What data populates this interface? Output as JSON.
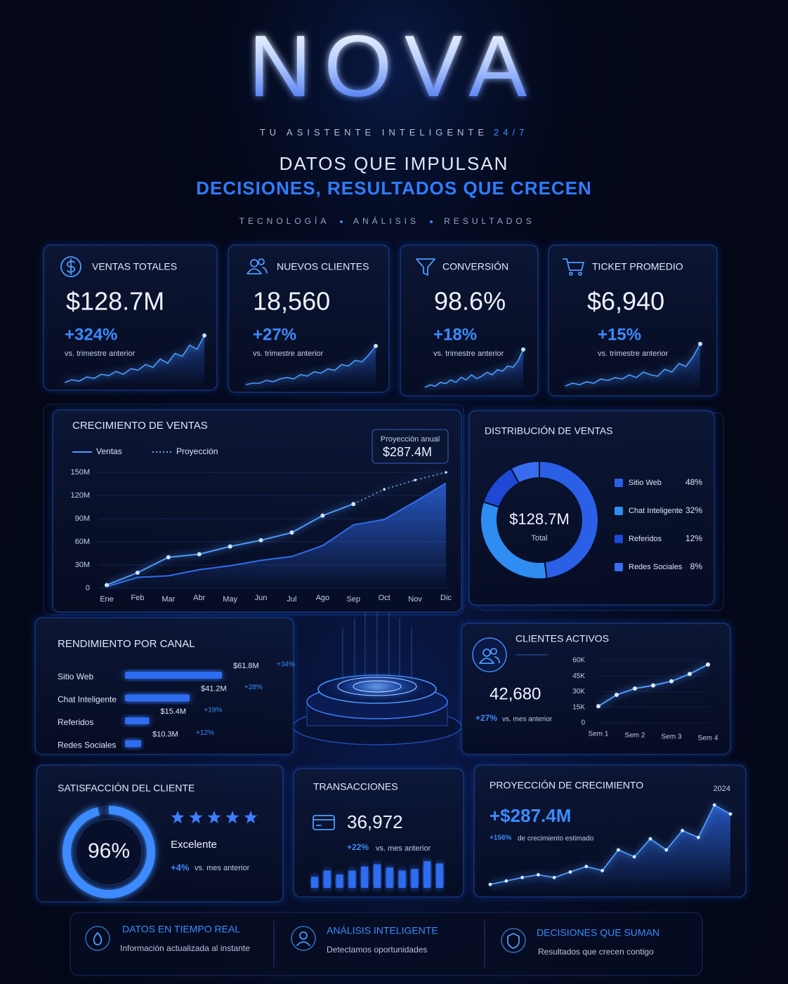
{
  "header": {
    "title": "NOVA",
    "tagline": [
      "TU ASISTENTE INTELIGENTE",
      "24/7"
    ],
    "headline": [
      "DATOS QUE IMPULSAN",
      "DECISIONES, RESULTADOS QUE CRECEN"
    ],
    "pillars": [
      "TECNOLOGÍA",
      "ANÁLISIS",
      "RESULTADOS"
    ]
  },
  "kpis": [
    {
      "label": "VENTAS TOTALES",
      "value": "$128.7M",
      "change": "+324%",
      "note": "vs. trimestre anterior",
      "sparkline": [
        6,
        8,
        7,
        10,
        9,
        12,
        11,
        14,
        12,
        16,
        15,
        19,
        17,
        23,
        20,
        27,
        25,
        33,
        30,
        40
      ]
    },
    {
      "label": "NUEVOS CLIENTES",
      "value": "18,560",
      "change": "+27%",
      "note": "vs. trimestre anterior",
      "sparkline": [
        5,
        6,
        6,
        8,
        7,
        9,
        10,
        9,
        12,
        11,
        14,
        13,
        16,
        15,
        19,
        18,
        22,
        21,
        26,
        32
      ]
    },
    {
      "label": "CONVERSIÓN",
      "value": "98.6%",
      "change": "+18%",
      "note": "vs. trimestre anterior",
      "sparkline": [
        4,
        6,
        5,
        8,
        7,
        10,
        8,
        12,
        10,
        14,
        11,
        13,
        16,
        14,
        18,
        17,
        21,
        20,
        25,
        34
      ]
    },
    {
      "label": "TICKET PROMEDIO",
      "value": "$6,940",
      "change": "+15%",
      "note": "vs. trimestre anterior",
      "sparkline": [
        6,
        8,
        7,
        9,
        8,
        11,
        10,
        12,
        11,
        14,
        12,
        16,
        14,
        13,
        18,
        16,
        22,
        20,
        27,
        36
      ]
    }
  ],
  "chart_data": [
    {
      "type": "line",
      "title": "CRECIMIENTO DE VENTAS",
      "categories": [
        "Ene",
        "Feb",
        "Mar",
        "Abr",
        "May",
        "Jun",
        "Jul",
        "Ago",
        "Sep",
        "Oct",
        "Nov",
        "Dic"
      ],
      "series": [
        {
          "color": "#2f6df0",
          "fill": "area",
          "values": [
            2,
            14,
            16,
            24,
            29,
            36,
            41,
            55,
            82,
            89,
            112,
            136
          ]
        },
        {
          "name": "Ventas",
          "color": "#4d9bff",
          "values": [
            4,
            20,
            40,
            44,
            54,
            62,
            72,
            94,
            109,
            null,
            null,
            null
          ]
        },
        {
          "name": "Proyección",
          "color": "#6aaeff",
          "style": "dotted",
          "values": [
            null,
            null,
            null,
            null,
            null,
            null,
            null,
            null,
            109,
            128,
            140,
            150
          ]
        }
      ],
      "ylim": [
        0,
        150
      ],
      "yticks": [
        0,
        {
          "value": 30,
          "label": "30M"
        },
        {
          "value": 60,
          "label": "60M"
        },
        {
          "value": 90,
          "label": "90M"
        },
        {
          "value": 120,
          "label": "120M"
        },
        {
          "value": 150,
          "label": "150M"
        }
      ],
      "grid": true,
      "annotation": {
        "title": "Proyección anual",
        "value": "$287.4M"
      }
    },
    {
      "type": "donut",
      "title": "DISTRIBUCIÓN DE VENTAS",
      "categories": [
        "Sitio Web",
        "Chat Inteligente",
        "Referidos",
        "Redes Sociales"
      ],
      "values": [
        48,
        32,
        12,
        8
      ],
      "value_labels": [
        "48%",
        "32%",
        "12%",
        "8%"
      ],
      "colors": [
        "#2a5fe6",
        "#2f8cf0",
        "#1f48d6",
        "#3a6cf0"
      ],
      "center": {
        "value": "$128.7M",
        "label": "Total"
      }
    },
    {
      "type": "hbar",
      "title": "RENDIMIENTO POR CANAL",
      "categories": [
        "Sitio Web",
        "Chat Inteligente",
        "Referidos",
        "Redes Sociales"
      ],
      "values": [
        61.8,
        41.2,
        15.4,
        10.3
      ],
      "value_labels": [
        "$61.8M",
        "$41.2M",
        "$15.4M",
        "$10.3M"
      ],
      "changes": [
        "+34%",
        "+28%",
        "+19%",
        "+12%"
      ],
      "color": "#2f6df0"
    },
    {
      "type": "line",
      "title": "CLIENTES ACTIVOS",
      "value": "42,680",
      "change": "+27%",
      "note": "vs. mes anterior",
      "categories": [
        "Sem 1",
        null,
        "Sem 2",
        null,
        "Sem 3",
        null,
        "Sem 4"
      ],
      "values": [
        16000,
        27000,
        33000,
        36000,
        40000,
        47000,
        56000
      ],
      "ylim": [
        0,
        60000
      ],
      "yticks": [
        0,
        {
          "value": 15000,
          "label": "15K"
        },
        {
          "value": 30000,
          "label": "30K"
        },
        {
          "value": 45000,
          "label": "45K"
        },
        {
          "value": 60000,
          "label": "60K"
        }
      ],
      "color": "#4d9bff"
    },
    {
      "type": "gauge",
      "title": "SATISFACCIÓN DEL CLIENTE",
      "value": 96,
      "value_label": "96%",
      "ylim": [
        0,
        100
      ],
      "stars": 5,
      "rating": "Excelente",
      "change": "+4%",
      "note": "vs. mes anterior",
      "color": "#3d8bff"
    },
    {
      "type": "bar",
      "title": "TRANSACCIONES",
      "value": "36,972",
      "change": "+22%",
      "note": "vs. mes anterior",
      "values": [
        14,
        22,
        17,
        22,
        27,
        30,
        26,
        22,
        24,
        34,
        31
      ],
      "color": "#2f6df0"
    },
    {
      "type": "area",
      "title": "PROYECCIÓN DE CRECIMIENTO",
      "period": "2024",
      "value": "+$287.4M",
      "change": "+156%",
      "note": "de crecimiento estimado",
      "values": [
        8,
        13,
        18,
        22,
        18,
        26,
        34,
        28,
        58,
        48,
        74,
        58,
        86,
        76,
        123,
        110
      ],
      "color": "#4d9bff"
    }
  ],
  "features": [
    {
      "title": "DATOS EN TIEMPO REAL",
      "text": "Información actualizada al instante"
    },
    {
      "title": "ANÁLISIS INTELIGENTE",
      "text": "Detectamos oportunidades"
    },
    {
      "title": "DECISIONES QUE SUMAN",
      "text": "Resultados que crecen contigo"
    }
  ]
}
